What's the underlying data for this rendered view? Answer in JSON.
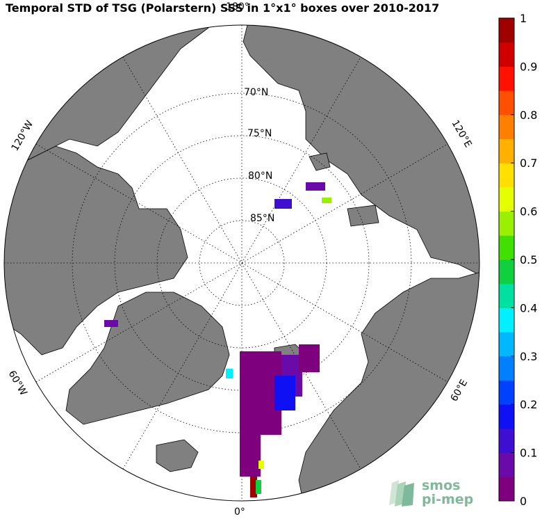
{
  "title": "Temporal STD of TSG (Polarstern) SSS in 1°x1° boxes over 2010-2017",
  "longitude_labels": {
    "top": "180°",
    "bottom": "0°",
    "upper_left": "120°W",
    "upper_right": "120°E",
    "lower_left": "60°W",
    "lower_right": "60°E"
  },
  "latitude_labels": [
    "70°N",
    "75°N",
    "80°N",
    "85°N"
  ],
  "colorbar": {
    "min": 0,
    "max": 1,
    "ticks": [
      "0",
      "0.1",
      "0.2",
      "0.3",
      "0.4",
      "0.5",
      "0.6",
      "0.7",
      "0.8",
      "0.9",
      "1"
    ],
    "colors": [
      "#7f007f",
      "#6a0aa8",
      "#3e0fd0",
      "#1010f5",
      "#0040ff",
      "#0080ff",
      "#00b8ff",
      "#00f0ff",
      "#00e0a0",
      "#10d040",
      "#40e000",
      "#9af000",
      "#e6ff00",
      "#ffe000",
      "#ffb000",
      "#ff8000",
      "#ff5000",
      "#ff1000",
      "#d00000",
      "#a00000"
    ]
  },
  "colors": {
    "land": "#808080",
    "ocean": "#ffffff",
    "grid": "#000000"
  },
  "logo": {
    "line1": "smos",
    "line2": "pi-mep"
  }
}
